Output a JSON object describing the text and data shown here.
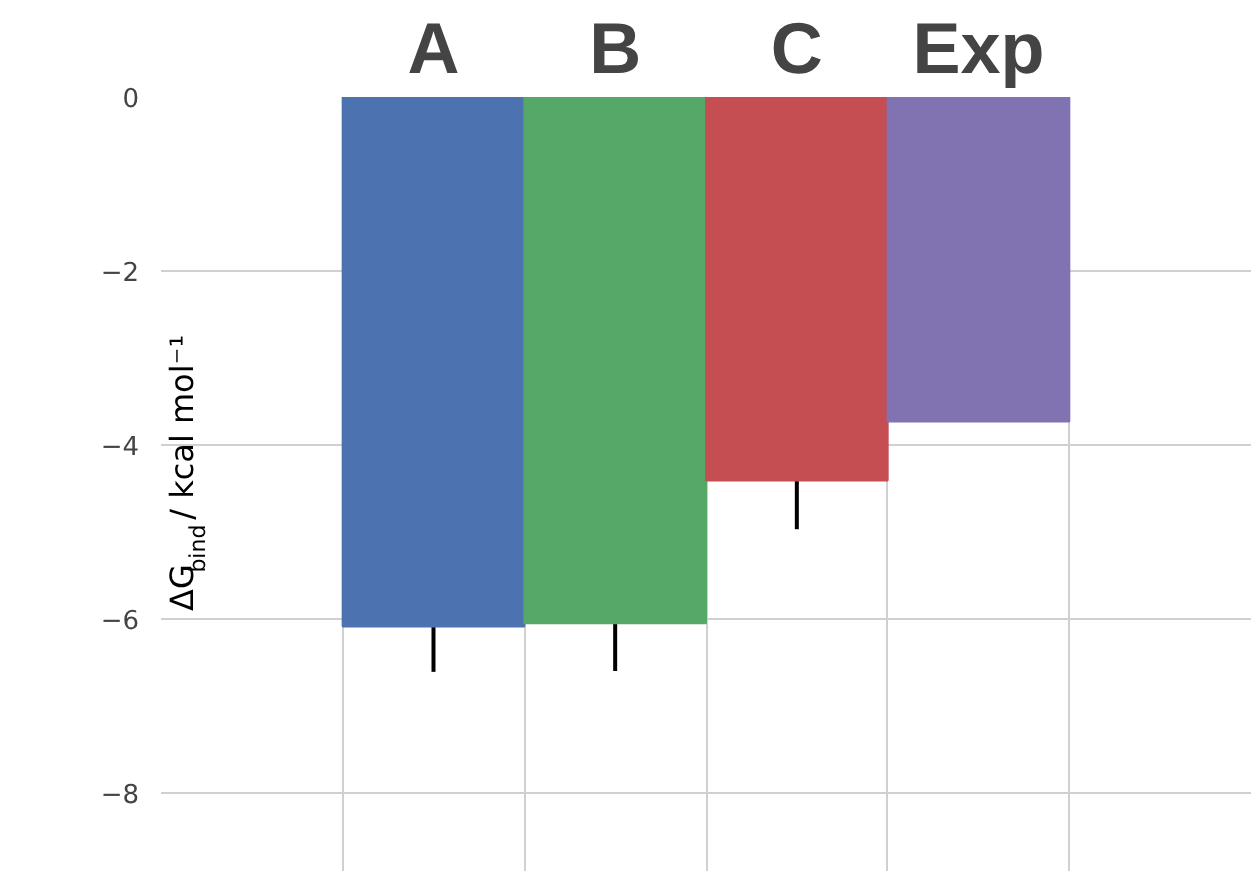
{
  "chart_data": {
    "type": "bar",
    "categories": [
      "A",
      "B",
      "C",
      "Exp"
    ],
    "series": [
      {
        "color": "#4c72b0",
        "values": [
          -6.09,
          null,
          null,
          null
        ],
        "errors": [
          0.52,
          null,
          null,
          null
        ]
      },
      {
        "color": "#55a868",
        "values": [
          null,
          -6.05,
          null,
          null
        ],
        "errors": [
          null,
          0.55,
          null,
          null
        ]
      },
      {
        "color": "#c44e52",
        "values": [
          null,
          null,
          -4.41,
          null
        ],
        "errors": [
          null,
          null,
          0.56,
          null
        ]
      },
      {
        "color": "#8172b2",
        "values": [
          null,
          null,
          null,
          -3.73
        ]
      }
    ],
    "ylabel": "ΔG$_{bind}$/ kcal mol⁻¹",
    "ylim": [
      -8.9,
      0
    ],
    "yticks": [
      0,
      -2,
      -4,
      -6,
      -8
    ],
    "grid": true
  }
}
